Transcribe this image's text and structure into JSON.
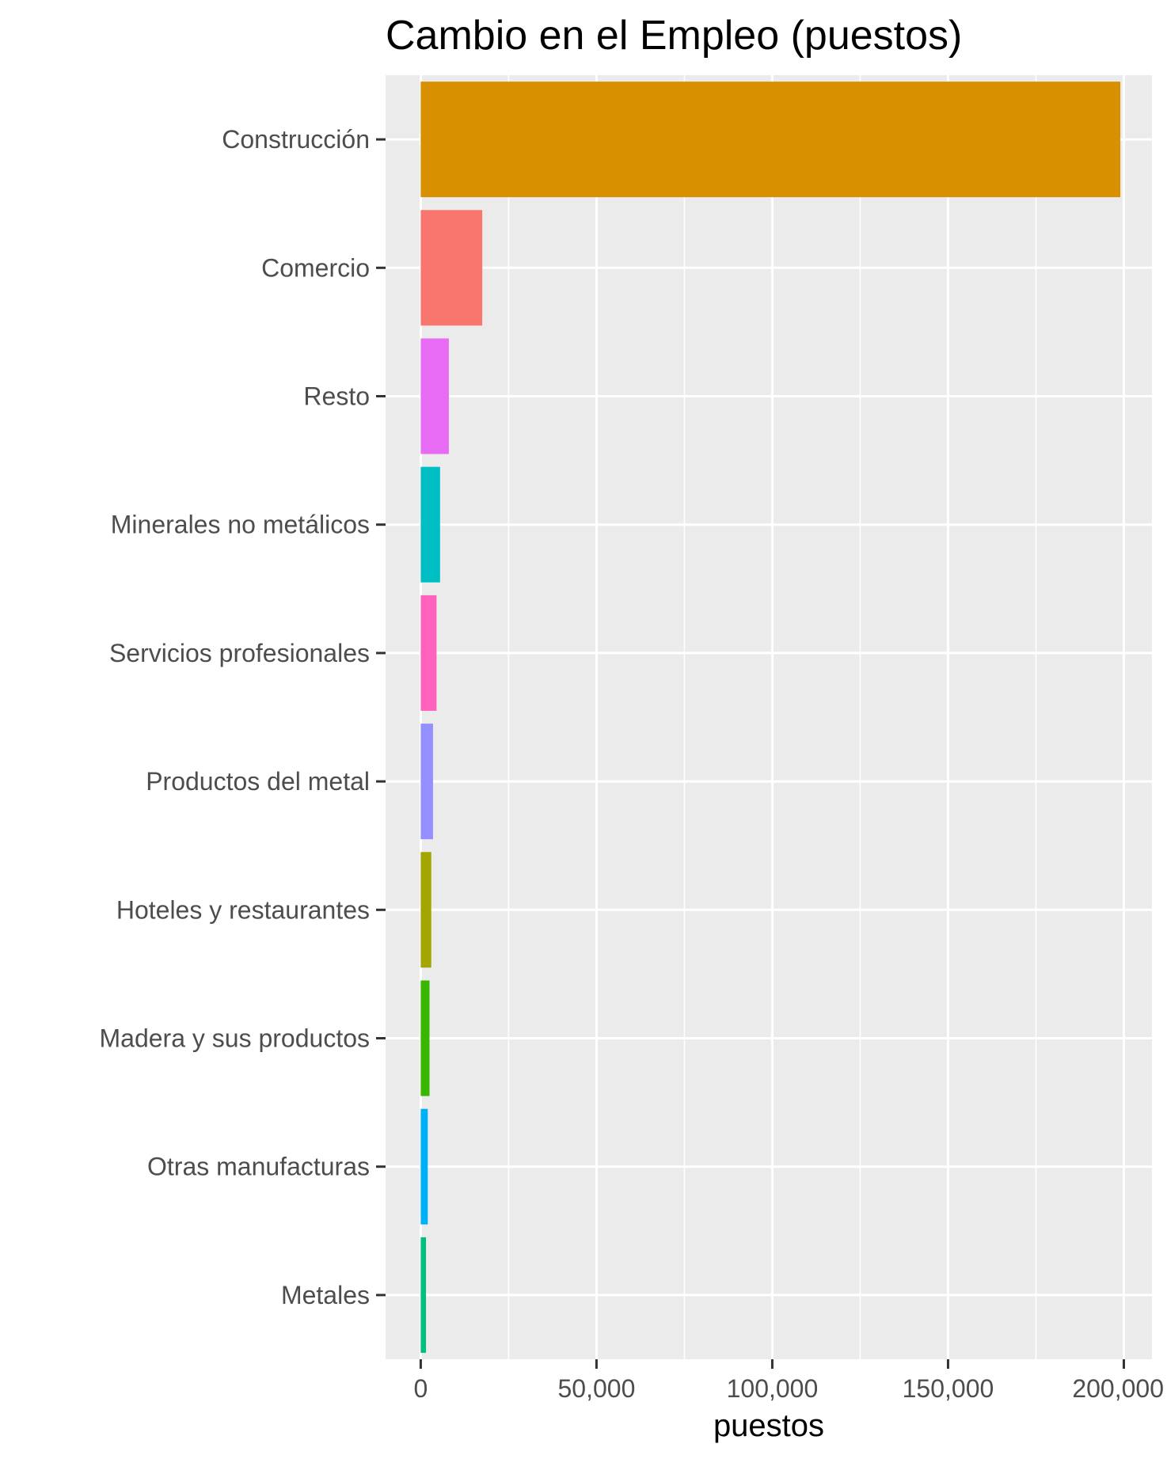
{
  "chart_data": {
    "type": "bar",
    "orientation": "horizontal",
    "title": "Cambio en el Empleo (puestos)",
    "xlabel": "puestos",
    "ylabel": "",
    "xlim": [
      -10000,
      208000
    ],
    "x_ticks": [
      0,
      50000,
      100000,
      150000,
      200000
    ],
    "x_tick_labels": [
      "0",
      "50,000",
      "100,000",
      "150,000",
      "200,000"
    ],
    "grid": true,
    "legend": "none",
    "panel_color": "#ebebeb",
    "categories": [
      "Construcción",
      "Comercio",
      "Resto",
      "Minerales no metálicos",
      "Servicios profesionales",
      "Productos del metal",
      "Hoteles y restaurantes",
      "Madera y sus productos",
      "Otras manufacturas",
      "Metales"
    ],
    "values": [
      199000,
      17500,
      8000,
      5500,
      4500,
      3500,
      3000,
      2500,
      2000,
      1500
    ],
    "colors": [
      "#d89000",
      "#f8766d",
      "#e76bf3",
      "#00bfc4",
      "#ff62bc",
      "#9590ff",
      "#a3a500",
      "#39b600",
      "#00b0f6",
      "#00bf7d"
    ]
  }
}
